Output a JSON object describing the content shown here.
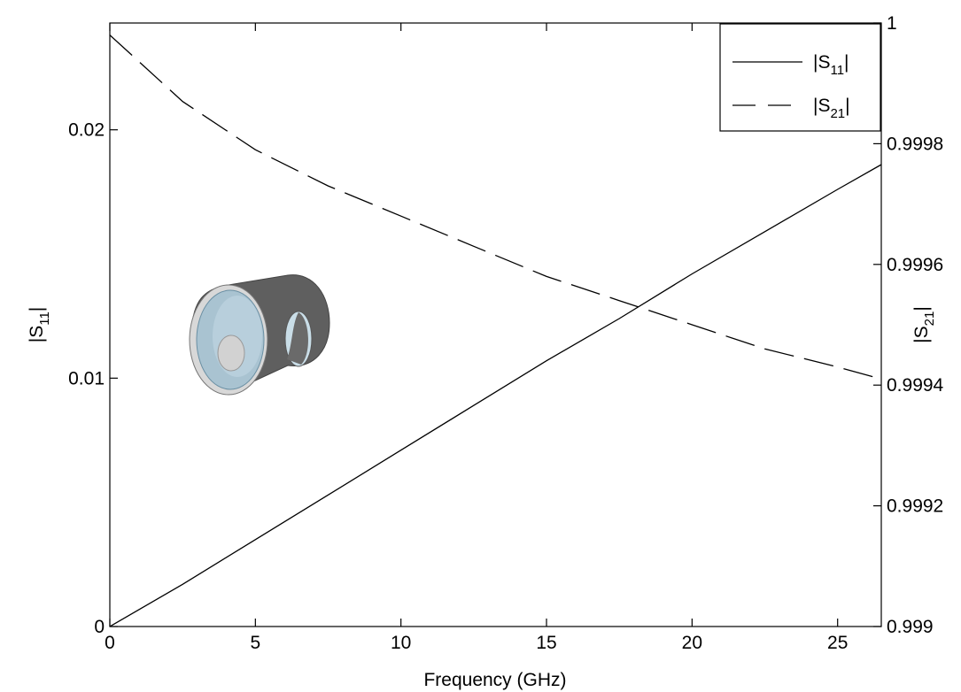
{
  "chart_data": {
    "type": "line",
    "title": "",
    "xlabel": "Frequency (GHz)",
    "ylabel_left": "|S11|",
    "ylabel_right": "|S21|",
    "xlim": [
      0,
      26.5
    ],
    "ylim_left": [
      0,
      0.0243
    ],
    "ylim_right": [
      0.999,
      1
    ],
    "x_ticks": [
      0,
      5,
      10,
      15,
      20,
      25
    ],
    "x_tick_labels": [
      "0",
      "5",
      "10",
      "15",
      "20",
      "25"
    ],
    "y_left_ticks": [
      0,
      0.01,
      0.02
    ],
    "y_left_tick_labels": [
      "0",
      "0.01",
      "0.02"
    ],
    "y_right_ticks": [
      0.999,
      0.9992,
      0.9994,
      0.9996,
      0.9998,
      1
    ],
    "y_right_tick_labels": [
      "0.999",
      "0.9992",
      "0.9994",
      "0.9996",
      "0.9998",
      "1"
    ],
    "grid": false,
    "legend_position": "top-right",
    "series": [
      {
        "name": "|S11|",
        "axis": "left",
        "style": "solid",
        "x": [
          0,
          2.5,
          5,
          7.5,
          10,
          12.5,
          15,
          17.5,
          20,
          22.5,
          25,
          26.5
        ],
        "y": [
          0,
          0.0017,
          0.0035,
          0.0053,
          0.0071,
          0.0089,
          0.0107,
          0.0124,
          0.0142,
          0.0159,
          0.0176,
          0.0186
        ]
      },
      {
        "name": "|S21|",
        "axis": "right",
        "style": "dashed",
        "x": [
          0,
          2.5,
          5,
          7.5,
          10,
          12.5,
          15,
          17.5,
          20,
          22.5,
          25,
          26.5
        ],
        "y": [
          0.99998,
          0.99987,
          0.99979,
          0.99973,
          0.99968,
          0.99963,
          0.99958,
          0.99954,
          0.9995,
          0.99946,
          0.99943,
          0.99941
        ]
      }
    ]
  },
  "legend": {
    "s11_base": "|S",
    "s11_sub": "11",
    "s11_end": "|",
    "s21_base": "|S",
    "s21_sub": "21",
    "s21_end": "|"
  },
  "labels": {
    "x": "Frequency (GHz)",
    "y_left_base": "|S",
    "y_left_sub": "11",
    "y_left_end": "|",
    "y_right_base": "|S",
    "y_right_sub": "21",
    "y_right_end": "|"
  },
  "colors": {
    "line": "#000000",
    "cylinder_outer": "#5e5e5e",
    "cylinder_inner": "#a9c3d1",
    "conductor": "#cccccc"
  }
}
